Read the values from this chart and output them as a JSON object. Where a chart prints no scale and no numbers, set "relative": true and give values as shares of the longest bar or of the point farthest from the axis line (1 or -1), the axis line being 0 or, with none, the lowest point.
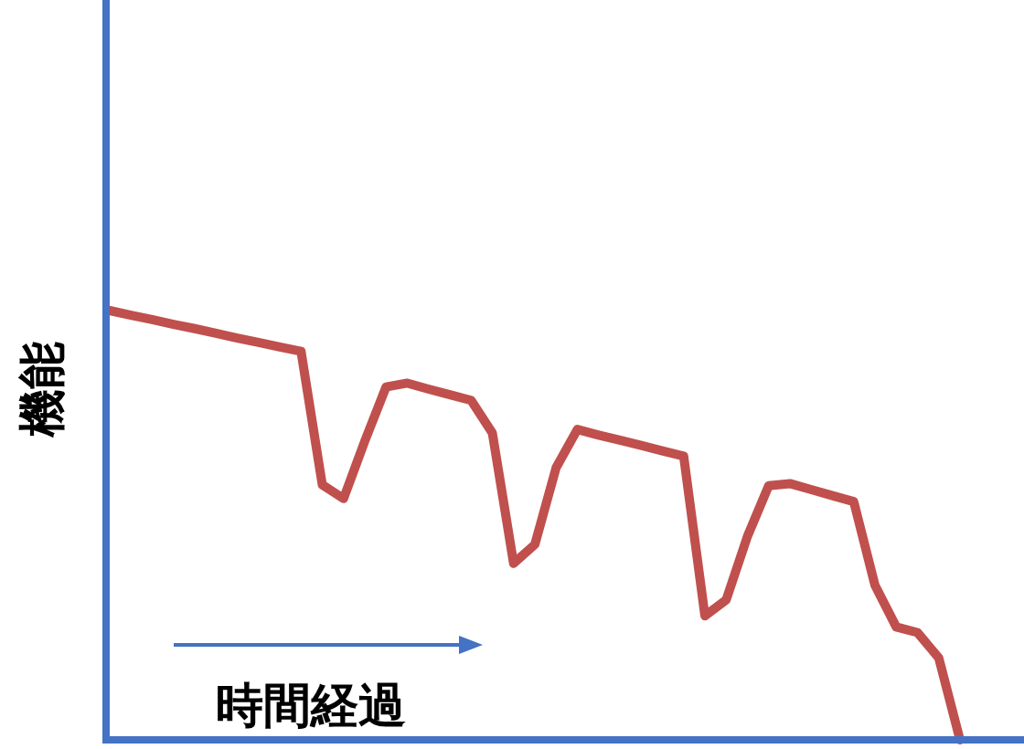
{
  "chart_data": {
    "type": "line",
    "relative": true,
    "xlabel": "時間経過",
    "ylabel": "機能",
    "line_style": "solid",
    "categories": [
      null,
      null,
      null,
      null,
      null,
      null,
      null,
      null,
      null,
      null,
      null,
      null,
      null,
      null,
      null,
      null,
      null,
      null,
      null,
      null,
      null,
      null,
      null,
      null,
      null,
      null,
      null,
      null,
      null,
      null,
      null,
      null,
      null,
      null,
      null,
      null,
      null,
      null,
      null,
      null,
      null
    ],
    "series": [
      {
        "color": "#c0504d",
        "values": [
          1,
          0.989,
          0.979,
          0.968,
          0.958,
          0.947,
          0.936,
          0.926,
          0.915,
          0.905,
          0.594,
          0.562,
          0.696,
          0.822,
          0.831,
          0.817,
          0.804,
          0.791,
          0.715,
          0.411,
          0.455,
          0.634,
          0.723,
          0.71,
          0.698,
          0.686,
          0.673,
          0.661,
          0.289,
          0.326,
          0.474,
          0.592,
          0.597,
          0.583,
          0.569,
          0.555,
          0.36,
          0.263,
          0.25,
          0.191,
          0
        ]
      }
    ]
  }
}
